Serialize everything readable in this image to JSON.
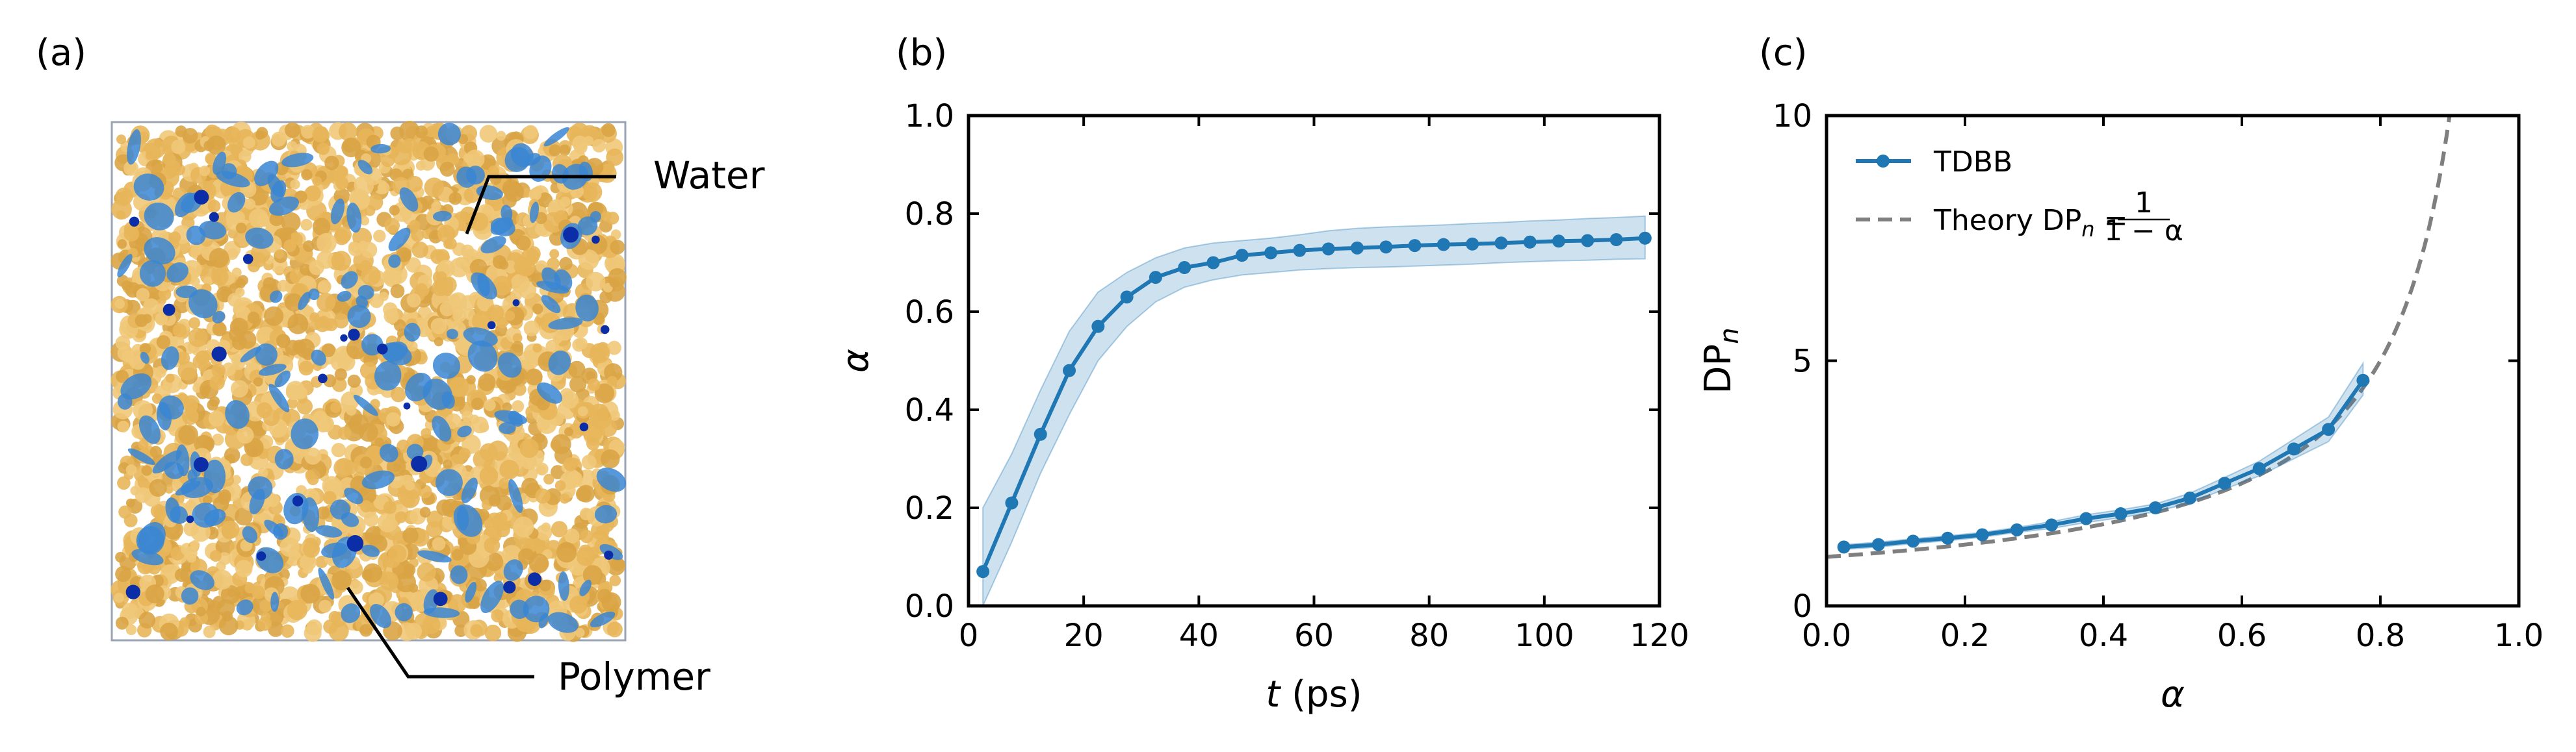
{
  "panel_a": {
    "label": "(a)",
    "water_label": "Water",
    "polymer_label": "Polymer",
    "colors": {
      "polymer": "#e8b65a",
      "water": "#3a86d4",
      "water_dark": "#0b2ea8"
    }
  },
  "chart_data": [
    {
      "panel": "(b)",
      "type": "line",
      "xlabel_italic": "t",
      "xlabel_unit": " (ps)",
      "ylabel": "α",
      "xlim": [
        0,
        120
      ],
      "ylim": [
        0,
        1
      ],
      "xticks": [
        0,
        20,
        40,
        60,
        80,
        100,
        120
      ],
      "yticks": [
        0.0,
        0.2,
        0.4,
        0.6,
        0.8,
        1.0
      ],
      "xtick_labels": [
        "0",
        "20",
        "40",
        "60",
        "80",
        "100",
        "120"
      ],
      "ytick_labels": [
        "0.0",
        "0.2",
        "0.4",
        "0.6",
        "0.8",
        "1.0"
      ],
      "color": "#1f77b4",
      "series": [
        {
          "x": [
            2.5,
            7.5,
            12.5,
            17.5,
            22.5,
            27.5,
            32.5,
            37.5,
            42.5,
            47.5,
            52.5,
            57.5,
            62.5,
            67.5,
            72.5,
            77.5,
            82.5,
            87.5,
            92.5,
            97.5,
            102.5,
            107.5,
            112.5,
            117.5
          ],
          "y": [
            0.07,
            0.21,
            0.35,
            0.48,
            0.57,
            0.63,
            0.67,
            0.69,
            0.7,
            0.715,
            0.72,
            0.725,
            0.728,
            0.73,
            0.732,
            0.735,
            0.737,
            0.738,
            0.74,
            0.742,
            0.744,
            0.745,
            0.747,
            0.75
          ],
          "lower": [
            0.0,
            0.13,
            0.27,
            0.39,
            0.5,
            0.57,
            0.62,
            0.65,
            0.665,
            0.675,
            0.68,
            0.685,
            0.688,
            0.69,
            0.691,
            0.693,
            0.695,
            0.697,
            0.7,
            0.702,
            0.704,
            0.705,
            0.707,
            0.708
          ],
          "upper": [
            0.2,
            0.31,
            0.44,
            0.56,
            0.64,
            0.68,
            0.71,
            0.73,
            0.74,
            0.745,
            0.75,
            0.757,
            0.765,
            0.77,
            0.773,
            0.775,
            0.777,
            0.78,
            0.782,
            0.785,
            0.787,
            0.79,
            0.792,
            0.795
          ]
        }
      ]
    },
    {
      "panel": "(c)",
      "type": "line",
      "xlabel": "α",
      "ylabel_main": "DP",
      "ylabel_sub": "n",
      "xlim": [
        0,
        1
      ],
      "ylim": [
        0,
        10
      ],
      "xticks": [
        0.0,
        0.2,
        0.4,
        0.6,
        0.8,
        1.0
      ],
      "yticks": [
        0,
        5,
        10
      ],
      "xtick_labels": [
        "0.0",
        "0.2",
        "0.4",
        "0.6",
        "0.8",
        "1.0"
      ],
      "ytick_labels": [
        "0",
        "5",
        "10"
      ],
      "legend_position": "top-left",
      "series": [
        {
          "name": "TDBB",
          "color": "#1f77b4",
          "x": [
            0.025,
            0.075,
            0.125,
            0.175,
            0.225,
            0.275,
            0.325,
            0.375,
            0.425,
            0.475,
            0.525,
            0.575,
            0.625,
            0.675,
            0.725,
            0.775
          ],
          "y": [
            1.2,
            1.25,
            1.32,
            1.38,
            1.45,
            1.55,
            1.65,
            1.78,
            1.88,
            2.0,
            2.2,
            2.5,
            2.8,
            3.2,
            3.6,
            4.6
          ],
          "lower": [
            1.15,
            1.2,
            1.27,
            1.33,
            1.4,
            1.5,
            1.58,
            1.7,
            1.8,
            1.92,
            2.1,
            2.38,
            2.65,
            3.0,
            3.35,
            4.3
          ],
          "upper": [
            1.25,
            1.3,
            1.37,
            1.43,
            1.5,
            1.6,
            1.72,
            1.86,
            1.96,
            2.08,
            2.3,
            2.62,
            2.95,
            3.4,
            3.85,
            4.95
          ]
        },
        {
          "name": "Theory",
          "legend_label": "Theory DP",
          "legend_sub": "n",
          "legend_eq": " = ",
          "legend_num": "1",
          "legend_den": "1 − α",
          "color": "#7f7f7f",
          "style": "dashed",
          "formula": "1/(1-α)",
          "x_range": [
            0.0,
            0.9
          ]
        }
      ]
    }
  ]
}
